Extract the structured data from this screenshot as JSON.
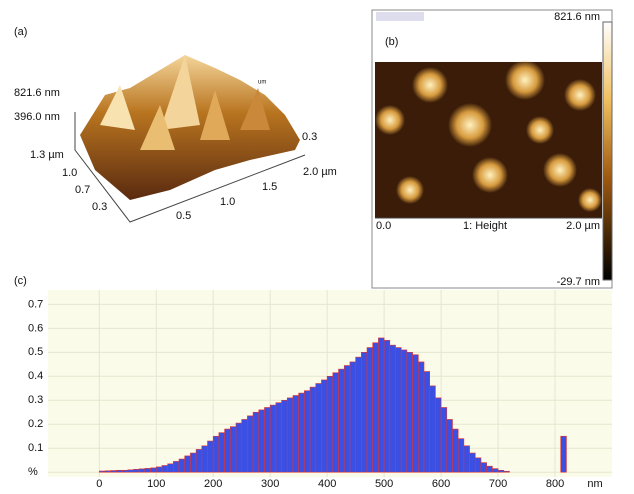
{
  "panel_a": {
    "label": "(a)",
    "z_labels": [
      "821.6 nm",
      "396.0 nm"
    ],
    "y_labels": [
      "1.3 µm",
      "1.0",
      "0.7",
      "0.3"
    ],
    "x_labels": [
      "0.5",
      "1.0",
      "1.5",
      "2.0 µm"
    ],
    "side_label": "0.3",
    "unit_mark": "um"
  },
  "panel_b": {
    "label": "(b)",
    "scale_max": "821.6 nm",
    "scale_min": "-29.7 nm",
    "x_start": "0.0",
    "channel": "1: Height",
    "x_end": "2.0 µm"
  },
  "chart_data": {
    "type": "histogram",
    "label": "(c)",
    "xlabel": "nm",
    "bins": [
      0,
      10,
      20,
      30,
      40,
      50,
      60,
      70,
      80,
      90,
      100,
      110,
      120,
      130,
      140,
      150,
      160,
      170,
      180,
      190,
      200,
      210,
      220,
      230,
      240,
      250,
      260,
      270,
      280,
      290,
      300,
      310,
      320,
      330,
      340,
      350,
      360,
      370,
      380,
      390,
      400,
      410,
      420,
      430,
      440,
      450,
      460,
      470,
      480,
      490,
      500,
      510,
      520,
      530,
      540,
      550,
      560,
      570,
      580,
      590,
      600,
      610,
      620,
      630,
      640,
      650,
      660,
      670,
      680,
      690,
      700,
      710,
      720,
      730,
      740,
      750,
      760,
      770,
      780,
      790,
      800,
      810,
      820,
      830,
      840
    ],
    "values": [
      0.005,
      0.006,
      0.007,
      0.008,
      0.008,
      0.01,
      0.012,
      0.014,
      0.016,
      0.018,
      0.022,
      0.028,
      0.035,
      0.045,
      0.055,
      0.068,
      0.08,
      0.095,
      0.11,
      0.13,
      0.15,
      0.165,
      0.18,
      0.19,
      0.205,
      0.22,
      0.235,
      0.25,
      0.26,
      0.27,
      0.28,
      0.29,
      0.3,
      0.31,
      0.32,
      0.33,
      0.34,
      0.355,
      0.37,
      0.385,
      0.4,
      0.415,
      0.43,
      0.445,
      0.46,
      0.48,
      0.5,
      0.52,
      0.54,
      0.56,
      0.55,
      0.53,
      0.52,
      0.51,
      0.5,
      0.49,
      0.46,
      0.42,
      0.36,
      0.31,
      0.27,
      0.22,
      0.18,
      0.14,
      0.11,
      0.08,
      0.06,
      0.04,
      0.025,
      0.015,
      0.008,
      0.004,
      0,
      0,
      0,
      0,
      0,
      0,
      0,
      0,
      0,
      0.15,
      0,
      0
    ],
    "color": "#3b4fe3",
    "xlim": [
      -90,
      900
    ],
    "ylim": [
      -0.02,
      0.76
    ],
    "xticks": [
      0,
      100,
      200,
      300,
      400,
      500,
      600,
      700,
      800
    ],
    "yticks": [
      {
        "value": 0,
        "label": "%"
      },
      0.1,
      0.2,
      0.3,
      0.4,
      0.5,
      0.6,
      0.7
    ],
    "grid": true
  }
}
